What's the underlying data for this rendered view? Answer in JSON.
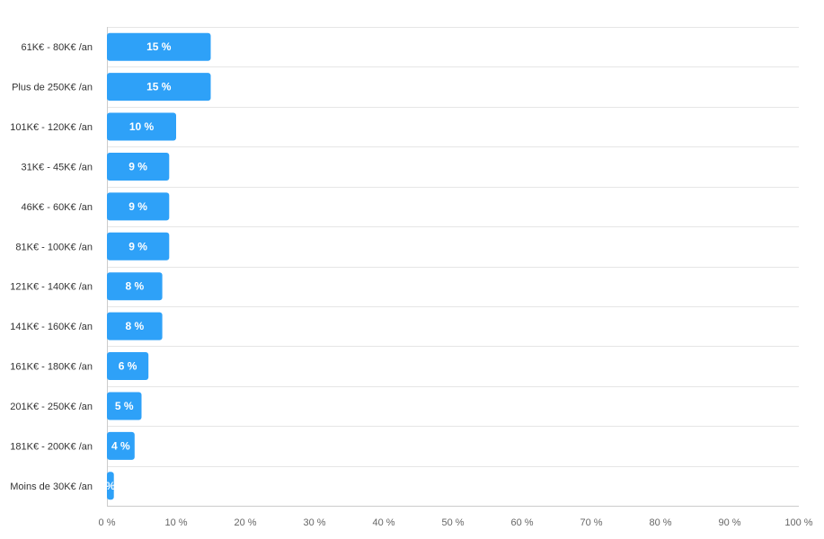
{
  "chart_data": {
    "type": "bar",
    "orientation": "horizontal",
    "categories": [
      "61K€ - 80K€ /an",
      "Plus de 250K€ /an",
      "101K€ - 120K€ /an",
      "31K€ - 45K€ /an",
      "46K€ - 60K€ /an",
      "81K€ - 100K€ /an",
      "121K€ - 140K€ /an",
      "141K€ - 160K€ /an",
      "161K€ - 180K€ /an",
      "201K€ - 250K€ /an",
      "181K€ - 200K€ /an",
      "Moins de 30K€ /an"
    ],
    "values": [
      15,
      15,
      10,
      9,
      9,
      9,
      8,
      8,
      6,
      5,
      4,
      1
    ],
    "data_labels": [
      "15 %",
      "15 %",
      "10 %",
      "9 %",
      "9 %",
      "9 %",
      "8 %",
      "8 %",
      "6 %",
      "5 %",
      "4 %",
      "%"
    ],
    "xlim": [
      0,
      100
    ],
    "x_ticks": [
      "0 %",
      "10 %",
      "20 %",
      "30 %",
      "40 %",
      "50 %",
      "60 %",
      "70 %",
      "80 %",
      "90 %",
      "100 %"
    ],
    "grid": true,
    "bar_color": "#2ea1f8",
    "title": "",
    "xlabel": "",
    "ylabel": ""
  }
}
